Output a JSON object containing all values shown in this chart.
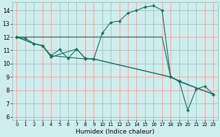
{
  "xlabel": "Humidex (Indice chaleur)",
  "xlim": [
    -0.5,
    23.5
  ],
  "ylim": [
    5.8,
    14.6
  ],
  "xticks": [
    0,
    1,
    2,
    3,
    4,
    5,
    6,
    7,
    8,
    9,
    10,
    11,
    12,
    13,
    14,
    15,
    16,
    17,
    18,
    19,
    20,
    21,
    22,
    23
  ],
  "yticks": [
    6,
    7,
    8,
    9,
    10,
    11,
    12,
    13,
    14
  ],
  "bg_color": "#ceeeed",
  "grid_color": "#e8aaaa",
  "line_color": "#1a7060",
  "curve1_x": [
    0,
    1,
    2,
    3,
    4,
    5,
    6,
    7,
    8,
    9,
    10,
    11,
    12,
    13,
    14,
    15,
    16,
    17,
    18,
    19,
    20,
    21,
    22,
    23
  ],
  "curve1_y": [
    12.0,
    11.9,
    11.5,
    11.35,
    10.6,
    11.05,
    10.4,
    11.1,
    10.4,
    10.35,
    12.3,
    13.1,
    13.2,
    13.8,
    14.0,
    14.25,
    14.35,
    14.0,
    9.0,
    8.7,
    6.5,
    8.1,
    8.3,
    7.7
  ],
  "curve2_x": [
    0,
    1,
    2,
    3,
    4,
    5,
    6,
    7,
    8,
    9,
    10,
    11,
    12,
    13,
    14,
    15,
    16,
    17,
    18,
    19,
    20,
    21,
    22,
    23
  ],
  "curve2_y": [
    12.0,
    12.0,
    12.0,
    12.0,
    12.0,
    12.0,
    12.0,
    12.0,
    12.0,
    12.0,
    12.0,
    12.0,
    12.0,
    12.0,
    12.0,
    12.0,
    12.0,
    12.0,
    9.0,
    8.7,
    null,
    null,
    null,
    7.7
  ],
  "curve3_x": [
    0,
    2,
    3,
    4,
    8,
    9,
    18,
    19,
    23
  ],
  "curve3_y": [
    12.0,
    11.5,
    11.35,
    10.6,
    10.35,
    10.35,
    9.0,
    8.65,
    7.7
  ],
  "curve4_x": [
    0,
    2,
    3,
    4,
    7,
    8,
    9,
    18,
    19,
    23
  ],
  "curve4_y": [
    12.0,
    11.5,
    11.35,
    10.5,
    11.1,
    10.4,
    10.35,
    9.0,
    8.7,
    7.7
  ]
}
